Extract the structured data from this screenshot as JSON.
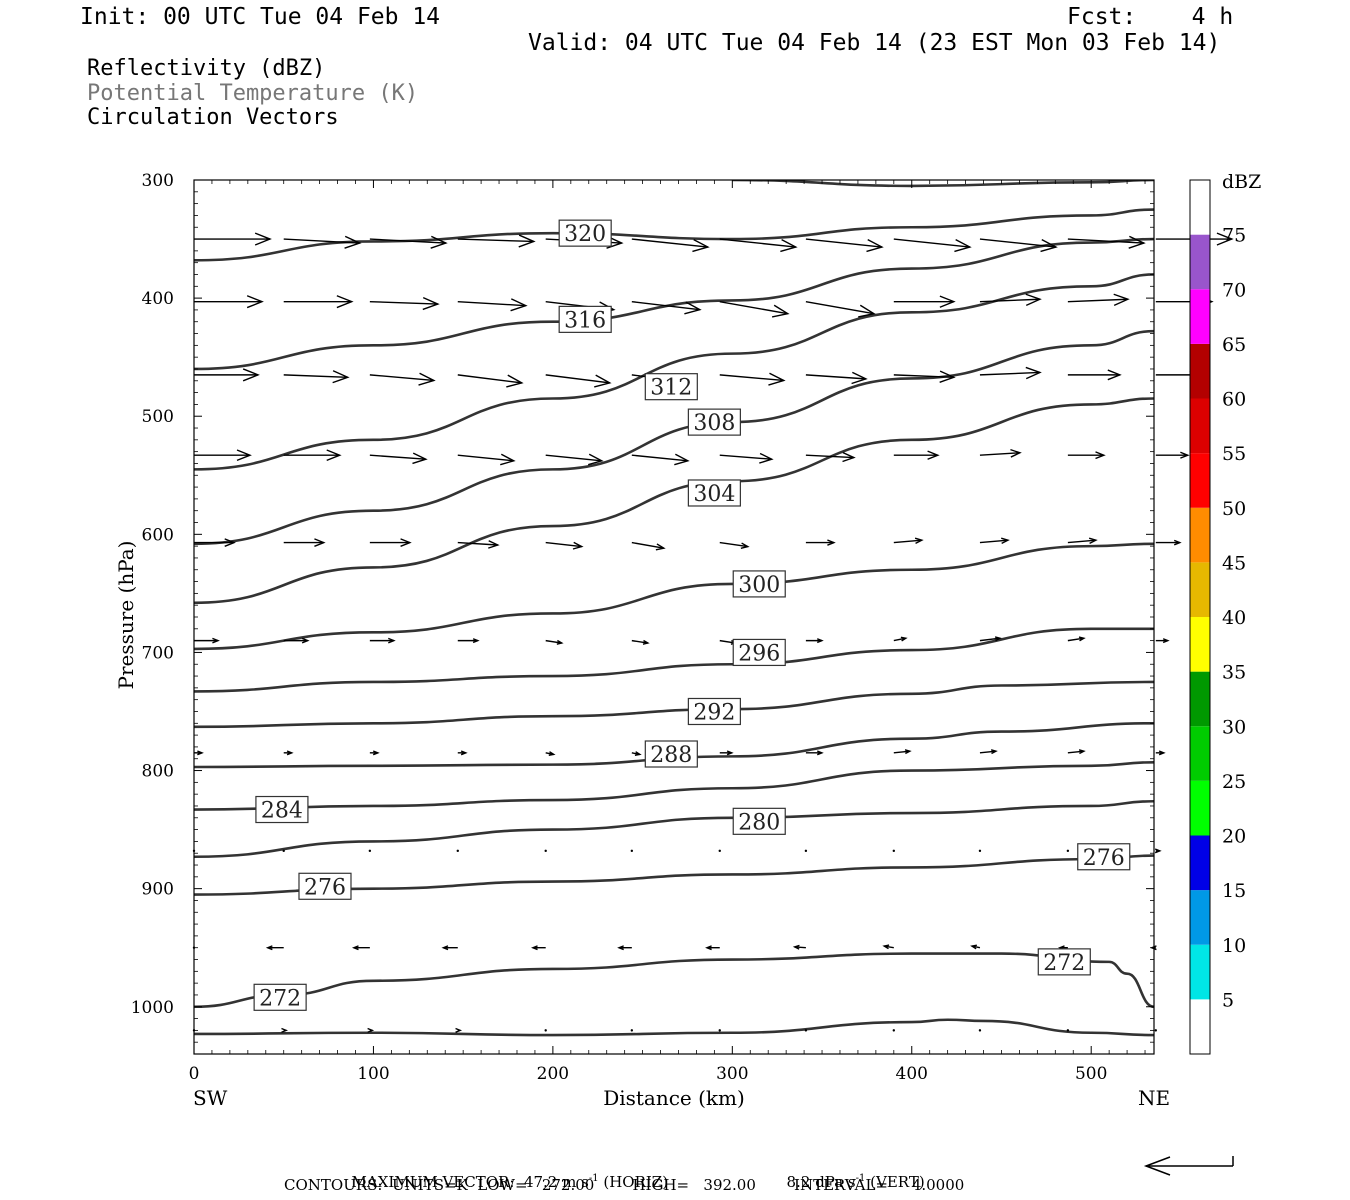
{
  "header": {
    "init": "Init: 00 UTC Tue 04 Feb 14",
    "fcst": "Fcst:    4 h",
    "valid": "Valid: 04 UTC Tue 04 Feb 14 (23 EST Mon 03 Feb 14)"
  },
  "fields": [
    "Reflectivity (dBZ)",
    "Potential Temperature (K)",
    "Circulation Vectors"
  ],
  "footer": {
    "max_vector_label": "MAXIMUM VECTOR:",
    "horiz_value": "47.2",
    "horiz_unit": "m s",
    "horiz_tag": "(HORIZ)",
    "vert_value": "8.2",
    "vert_unit": "dPa s",
    "vert_tag": "(VERT)",
    "exp": "-1",
    "contours_line": "CONTOURS:  UNITS=K  LOW=   272.00        HIGH=   392.00        INTERVAL=     4.0000"
  },
  "colorbar": {
    "title": "dBZ",
    "levels": [
      5,
      10,
      15,
      20,
      25,
      30,
      35,
      40,
      45,
      50,
      55,
      60,
      65,
      70,
      75
    ],
    "colors": [
      "#ffffff",
      "#00e6e6",
      "#0099e6",
      "#0000e6",
      "#00ff00",
      "#00cc00",
      "#009900",
      "#ffff00",
      "#e6b800",
      "#ff8c00",
      "#ff0000",
      "#dd0000",
      "#b30000",
      "#ff00ff",
      "#9955cc",
      "#ffffff"
    ]
  },
  "chart_data": {
    "type": "line",
    "xlabel": "Distance (km)",
    "ylabel": "Pressure (hPa)",
    "xlim": [
      0,
      535
    ],
    "ylim": [
      1040,
      300
    ],
    "xticks": [
      0,
      100,
      200,
      300,
      400,
      500
    ],
    "yticks": [
      300,
      400,
      500,
      600,
      700,
      800,
      900,
      1000
    ],
    "x_end_labels": {
      "left": "SW",
      "right": "NE"
    },
    "contour_color": "#333333",
    "vector_color": "#000000",
    "contours": [
      {
        "value": "272",
        "x": [
          0,
          50,
          100,
          200,
          300,
          400,
          450,
          510,
          520,
          535
        ],
        "y": [
          1000,
          990,
          978,
          968,
          960,
          955,
          955,
          962,
          972,
          1000
        ],
        "labels": [
          [
            48,
            992
          ],
          [
            485,
            962
          ]
        ]
      },
      {
        "value": "",
        "x": [
          0,
          100,
          200,
          300,
          400,
          420,
          440,
          500,
          535
        ],
        "y": [
          1023,
          1022,
          1024,
          1022,
          1013,
          1011,
          1012,
          1022,
          1024
        ],
        "labels": []
      },
      {
        "value": "276",
        "x": [
          0,
          100,
          200,
          300,
          400,
          500,
          535
        ],
        "y": [
          905,
          900,
          894,
          888,
          882,
          875,
          872
        ],
        "labels": [
          [
            73,
            898
          ],
          [
            507,
            873
          ]
        ]
      },
      {
        "value": "280",
        "x": [
          0,
          100,
          200,
          300,
          400,
          500,
          535
        ],
        "y": [
          873,
          860,
          850,
          840,
          836,
          830,
          826
        ],
        "labels": [
          [
            315,
            843
          ]
        ]
      },
      {
        "value": "284",
        "x": [
          0,
          100,
          200,
          300,
          400,
          500,
          535
        ],
        "y": [
          833,
          830,
          825,
          815,
          800,
          796,
          793
        ],
        "labels": [
          [
            49,
            833
          ]
        ]
      },
      {
        "value": "288",
        "x": [
          0,
          100,
          200,
          300,
          400,
          450,
          535
        ],
        "y": [
          797,
          796,
          795,
          788,
          773,
          767,
          760
        ],
        "labels": [
          [
            266,
            786
          ]
        ]
      },
      {
        "value": "292",
        "x": [
          0,
          100,
          200,
          300,
          400,
          450,
          535
        ],
        "y": [
          763,
          760,
          754,
          748,
          735,
          728,
          725
        ],
        "labels": [
          [
            290,
            750
          ]
        ]
      },
      {
        "value": "296",
        "x": [
          0,
          100,
          200,
          300,
          400,
          500,
          535
        ],
        "y": [
          733,
          725,
          720,
          710,
          698,
          680,
          680
        ],
        "labels": [
          [
            315,
            700
          ]
        ]
      },
      {
        "value": "300",
        "x": [
          0,
          100,
          200,
          300,
          400,
          500,
          535
        ],
        "y": [
          697,
          683,
          667,
          642,
          630,
          610,
          608
        ],
        "labels": [
          [
            315,
            642
          ]
        ]
      },
      {
        "value": "304",
        "x": [
          0,
          100,
          200,
          300,
          400,
          500,
          535
        ],
        "y": [
          658,
          628,
          593,
          555,
          520,
          490,
          485
        ],
        "labels": [
          [
            290,
            565
          ]
        ]
      },
      {
        "value": "308",
        "x": [
          0,
          100,
          200,
          300,
          400,
          500,
          535
        ],
        "y": [
          608,
          580,
          545,
          505,
          468,
          440,
          428
        ],
        "labels": [
          [
            290,
            505
          ]
        ]
      },
      {
        "value": "312",
        "x": [
          0,
          100,
          200,
          300,
          400,
          500,
          535
        ],
        "y": [
          545,
          520,
          485,
          447,
          412,
          390,
          380
        ],
        "labels": [
          [
            266,
            475
          ]
        ]
      },
      {
        "value": "316",
        "x": [
          0,
          100,
          200,
          300,
          400,
          500,
          535
        ],
        "y": [
          460,
          440,
          420,
          402,
          375,
          353,
          350
        ],
        "labels": [
          [
            218,
            418
          ]
        ]
      },
      {
        "value": "320",
        "x": [
          0,
          100,
          200,
          300,
          400,
          500,
          535
        ],
        "y": [
          368,
          352,
          345,
          350,
          340,
          330,
          325
        ],
        "labels": [
          [
            218,
            345
          ]
        ]
      },
      {
        "value": "",
        "x": [
          300,
          400,
          500,
          535
        ],
        "y": [
          300,
          305,
          302,
          300
        ],
        "labels": []
      }
    ],
    "vector_rows": [
      {
        "p": 350,
        "x": [
          0,
          50,
          98,
          147,
          196,
          244,
          293,
          341,
          390,
          438,
          487,
          536
        ],
        "u": [
          0.95,
          0.95,
          0.95,
          0.95,
          0.95,
          0.95,
          0.95,
          0.95,
          0.95,
          0.95,
          0.95,
          0.95
        ],
        "w": [
          0,
          -0.05,
          -0.05,
          -0.03,
          -0.05,
          -0.1,
          -0.1,
          -0.1,
          -0.1,
          -0.1,
          -0.05,
          0
        ]
      },
      {
        "p": 403,
        "x": [
          0,
          50,
          98,
          147,
          196,
          244,
          293,
          341,
          390,
          438,
          487,
          536
        ],
        "u": [
          0.85,
          0.85,
          0.85,
          0.85,
          0.85,
          0.85,
          0.85,
          0.85,
          0.75,
          0.75,
          0.75,
          0.7
        ],
        "w": [
          0,
          0,
          -0.03,
          -0.05,
          -0.1,
          -0.1,
          -0.15,
          -0.15,
          0,
          0.03,
          0.03,
          0
        ]
      },
      {
        "p": 465,
        "x": [
          0,
          50,
          98,
          147,
          196,
          244,
          293,
          341,
          390,
          438,
          487,
          536
        ],
        "u": [
          0.8,
          0.8,
          0.8,
          0.8,
          0.8,
          0.8,
          0.8,
          0.75,
          0.75,
          0.75,
          0.65,
          0.55
        ],
        "w": [
          0,
          -0.03,
          -0.07,
          -0.1,
          -0.1,
          -0.1,
          -0.07,
          -0.05,
          -0.03,
          0.03,
          0,
          0
        ]
      },
      {
        "p": 533,
        "x": [
          0,
          50,
          98,
          147,
          196,
          244,
          293,
          341,
          390,
          438,
          487,
          536
        ],
        "u": [
          0.7,
          0.7,
          0.7,
          0.7,
          0.7,
          0.7,
          0.65,
          0.6,
          0.55,
          0.5,
          0.45,
          0.4
        ],
        "w": [
          0,
          0,
          -0.05,
          -0.07,
          -0.07,
          -0.07,
          -0.05,
          -0.03,
          0,
          0.03,
          0,
          0
        ]
      },
      {
        "p": 607,
        "x": [
          0,
          50,
          98,
          147,
          196,
          244,
          293,
          341,
          390,
          438,
          487,
          536
        ],
        "u": [
          0.5,
          0.5,
          0.5,
          0.5,
          0.45,
          0.4,
          0.35,
          0.35,
          0.35,
          0.35,
          0.35,
          0.3
        ],
        "w": [
          0,
          0,
          0,
          -0.03,
          -0.05,
          -0.07,
          -0.05,
          0,
          0.03,
          0.03,
          0.03,
          0
        ]
      },
      {
        "p": 690,
        "x": [
          0,
          50,
          98,
          147,
          196,
          244,
          293,
          341,
          390,
          438,
          487,
          536
        ],
        "u": [
          0.3,
          0.3,
          0.3,
          0.25,
          0.2,
          0.2,
          0.2,
          0.2,
          0.15,
          0.25,
          0.2,
          0.15
        ],
        "w": [
          0,
          0,
          0,
          0,
          -0.03,
          -0.03,
          -0.03,
          0,
          0.03,
          0.03,
          0.03,
          0
        ]
      },
      {
        "p": 785,
        "x": [
          0,
          50,
          98,
          147,
          196,
          244,
          293,
          341,
          390,
          438,
          487,
          536
        ],
        "u": [
          0.1,
          0.1,
          0.1,
          0.1,
          0.1,
          0.1,
          0.15,
          0.2,
          0.2,
          0.2,
          0.2,
          0.1
        ],
        "w": [
          0,
          0,
          0,
          0,
          -0.02,
          -0.02,
          0,
          0,
          0.02,
          0.02,
          0.02,
          0
        ]
      },
      {
        "p": 868,
        "x": [
          0,
          50,
          98,
          147,
          196,
          244,
          293,
          341,
          390,
          438,
          487,
          536
        ],
        "u": [
          0,
          0,
          0,
          0,
          0,
          0,
          0,
          0,
          0,
          0,
          0.02,
          0.05
        ],
        "w": [
          0,
          0,
          0,
          0,
          0,
          0,
          0,
          0,
          0,
          0,
          0,
          0
        ]
      },
      {
        "p": 950,
        "x": [
          0,
          50,
          98,
          147,
          196,
          244,
          293,
          341,
          390,
          438,
          487,
          536
        ],
        "u": [
          0,
          -0.2,
          -0.2,
          -0.18,
          -0.16,
          -0.16,
          -0.16,
          -0.14,
          -0.12,
          -0.1,
          -0.1,
          -0.05
        ],
        "w": [
          0,
          0,
          0,
          0,
          0,
          0,
          0,
          0.01,
          0.02,
          0.02,
          0,
          0
        ]
      },
      {
        "p": 1020,
        "x": [
          0,
          50,
          98,
          147,
          196,
          244,
          293,
          341,
          390,
          438,
          487,
          536
        ],
        "u": [
          0,
          0.03,
          0.03,
          0.03,
          0.02,
          0.02,
          0.02,
          0.02,
          0.02,
          0.02,
          0.02,
          0.02
        ],
        "w": [
          0,
          0,
          0,
          0,
          0,
          0,
          0,
          0,
          0,
          0,
          0,
          0
        ]
      }
    ]
  }
}
